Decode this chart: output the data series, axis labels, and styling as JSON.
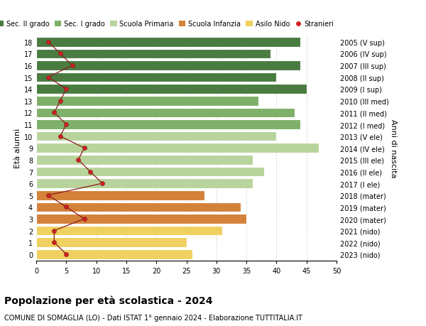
{
  "ages": [
    18,
    17,
    16,
    15,
    14,
    13,
    12,
    11,
    10,
    9,
    8,
    7,
    6,
    5,
    4,
    3,
    2,
    1,
    0
  ],
  "right_labels": [
    "2005 (V sup)",
    "2006 (IV sup)",
    "2007 (III sup)",
    "2008 (II sup)",
    "2009 (I sup)",
    "2010 (III med)",
    "2011 (II med)",
    "2012 (I med)",
    "2013 (V ele)",
    "2014 (IV ele)",
    "2015 (III ele)",
    "2016 (II ele)",
    "2017 (I ele)",
    "2018 (mater)",
    "2019 (mater)",
    "2020 (mater)",
    "2021 (nido)",
    "2022 (nido)",
    "2023 (nido)"
  ],
  "bar_values": [
    44,
    39,
    44,
    40,
    45,
    37,
    43,
    44,
    40,
    47,
    36,
    38,
    36,
    28,
    34,
    35,
    31,
    25,
    26
  ],
  "bar_colors": [
    "#4a7c42",
    "#4a7c42",
    "#4a7c42",
    "#4a7c42",
    "#4a7c42",
    "#7fb069",
    "#7fb069",
    "#7fb069",
    "#b8d49c",
    "#b8d49c",
    "#b8d49c",
    "#b8d49c",
    "#b8d49c",
    "#d4813a",
    "#d4813a",
    "#d4813a",
    "#f0d060",
    "#f0d060",
    "#f0d060"
  ],
  "stranieri_values": [
    2,
    4,
    6,
    2,
    5,
    4,
    3,
    5,
    4,
    8,
    7,
    9,
    11,
    2,
    5,
    8,
    3,
    3,
    5
  ],
  "legend_labels": [
    "Sec. II grado",
    "Sec. I grado",
    "Scuola Primaria",
    "Scuola Infanzia",
    "Asilo Nido",
    "Stranieri"
  ],
  "legend_colors": [
    "#4a7c42",
    "#7fb069",
    "#b8d49c",
    "#d4813a",
    "#f0d060",
    "#b22222"
  ],
  "title": "Popolazione per età scolastica - 2024",
  "subtitle": "COMUNE DI SOMAGLIA (LO) - Dati ISTAT 1° gennaio 2024 - Elaborazione TUTTITALIA.IT",
  "ylabel_left": "Età alunni",
  "ylabel_right": "Anni di nascita",
  "xlim": [
    0,
    50
  ],
  "xticks": [
    0,
    5,
    10,
    15,
    20,
    25,
    30,
    35,
    40,
    45,
    50
  ],
  "background_color": "#ffffff",
  "grid_color": "#d0d0d0",
  "bar_height": 0.82
}
